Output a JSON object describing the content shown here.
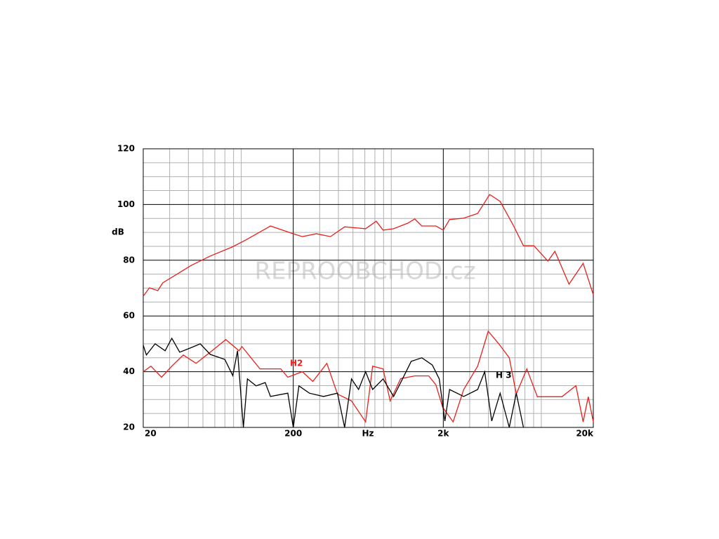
{
  "chart_data": {
    "type": "line",
    "ylabel": "dB",
    "xlabel": "Hz",
    "watermark": "REPROOBCHOD.cz",
    "xscale": "log",
    "grid": true,
    "xlim": [
      20,
      20000
    ],
    "ylim": [
      20,
      120
    ],
    "xticks": [
      {
        "value": 20,
        "label": "20"
      },
      {
        "value": 200,
        "label": "200"
      },
      {
        "value": 2000,
        "label": "2k"
      },
      {
        "value": 20000,
        "label": "20k"
      }
    ],
    "yticks": [
      20,
      40,
      60,
      80,
      100,
      120
    ],
    "xminor": [
      30,
      40,
      50,
      60,
      70,
      80,
      90,
      300,
      400,
      500,
      600,
      700,
      800,
      900,
      3000,
      4000,
      5000,
      6000,
      7000,
      8000,
      9000
    ],
    "yminor": [
      25,
      30,
      35,
      45,
      50,
      55,
      65,
      70,
      75,
      85,
      90,
      95,
      105,
      110,
      115
    ],
    "series": [
      {
        "color": "#e8201c",
        "x": [
          20,
          22,
          25,
          27,
          37,
          42,
          56,
          78,
          96,
          141,
          200,
          230,
          285,
          354,
          440,
          607,
          714,
          794,
          933,
          1159,
          1291,
          1439,
          1786,
          2000,
          2204,
          2736,
          3390,
          4074,
          4788,
          5821,
          6843,
          8035,
          9956,
          11095,
          13770,
          17100,
          20000
        ],
        "values": [
          67.1,
          70.1,
          69.1,
          71.9,
          76.4,
          78.2,
          81.5,
          84.7,
          87.2,
          92.3,
          89.5,
          88.5,
          89.5,
          88.5,
          92,
          91.3,
          94,
          90.8,
          91.3,
          93.3,
          94.8,
          92.3,
          92.3,
          90.8,
          94.6,
          95.1,
          96.8,
          103.6,
          101.1,
          92.8,
          85.2,
          85.2,
          79.7,
          83.2,
          71.4,
          78.9,
          67.6
        ]
      },
      {
        "name": "H2",
        "color": "#e8201c",
        "x": [
          20,
          22.5,
          26.5,
          31,
          37,
          45,
          56,
          71,
          87,
          91,
          120,
          165,
          184,
          230,
          270,
          335,
          394,
          489,
          607,
          676,
          794,
          885,
          1040,
          1291,
          1600,
          1786,
          1977,
          2326,
          2736,
          3390,
          3986,
          4688,
          5508,
          6134,
          7210,
          8474,
          12360,
          15310,
          17100,
          18500,
          20000
        ],
        "values": [
          40,
          42,
          38,
          42,
          46,
          43,
          47,
          51.5,
          47.5,
          49,
          41,
          41,
          38,
          40,
          36.5,
          43,
          32,
          29.5,
          22,
          42,
          41,
          29.5,
          37.5,
          38.5,
          38.5,
          35.3,
          27.3,
          22,
          33.6,
          42,
          54.5,
          50,
          45,
          32,
          41,
          31,
          31,
          35,
          22,
          31,
          22
        ]
      },
      {
        "name": "H 3",
        "color": "#000000",
        "x": [
          20,
          21,
          24,
          28,
          31,
          35,
          42,
          48,
          56,
          70,
          79,
          85,
          93,
          99,
          113,
          130,
          141,
          184,
          200,
          218,
          256,
          318,
          394,
          440,
          489,
          545,
          607,
          676,
          794,
          933,
          1040,
          1222,
          1439,
          1690,
          1880,
          2050,
          2204,
          2736,
          3390,
          3776,
          4207,
          4788,
          5508,
          6134,
          6843
        ],
        "values": [
          49.5,
          46,
          50,
          47.5,
          52,
          47,
          48.7,
          50,
          46.2,
          44.4,
          38.6,
          47.5,
          20,
          37.4,
          34.9,
          36.1,
          31.1,
          32.3,
          20,
          34.9,
          32.3,
          31.1,
          32.3,
          20,
          37.4,
          33.6,
          40,
          33.6,
          37.4,
          31.1,
          36.1,
          43.7,
          45,
          42.4,
          37.4,
          22.3,
          33.6,
          31.1,
          33.6,
          40,
          22.3,
          32.3,
          20,
          32.3,
          20
        ]
      }
    ]
  }
}
